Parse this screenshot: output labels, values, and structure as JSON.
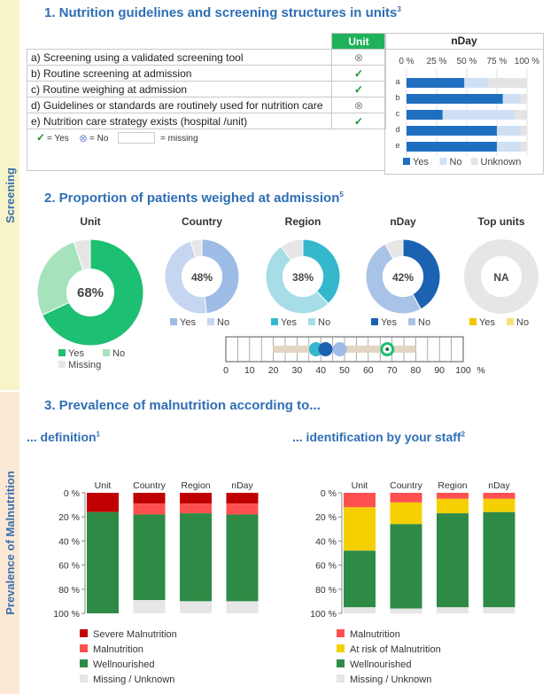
{
  "sidebar": {
    "screening_label": "Screening",
    "prevalence_label": "Prevalence of Malnutrition"
  },
  "section1": {
    "title": "1.  Nutrition guidelines and screening structures in units",
    "sup": "3",
    "unit_header": "Unit",
    "nday_header": "nDay",
    "rows": [
      {
        "label": "a) Screening using a validated screening tool",
        "mark": "no"
      },
      {
        "label": "b) Routine screening at admission",
        "mark": "yes"
      },
      {
        "label": "c) Routine weighing at admission",
        "mark": "yes"
      },
      {
        "label": "d) Guidelines or standards are routinely used for nutrition care",
        "mark": "no"
      },
      {
        "label": "e) Nutrition care strategy exists (hospital /unit)",
        "mark": "yes"
      }
    ],
    "symbols": {
      "yes": "✓",
      "no": "⊗"
    },
    "legend": {
      "yes": "= Yes",
      "no": "= No",
      "missing": "= missing"
    }
  },
  "section2": {
    "title": "2.  Proportion of patients weighed  at admission",
    "sup": "5",
    "range_ticks": [
      "0",
      "10",
      "20",
      "30",
      "40",
      "50",
      "60",
      "70",
      "80",
      "90",
      "100",
      "%"
    ]
  },
  "section3": {
    "title": "3.  Prevalence of malnutrition according to...",
    "left_title": "... definition",
    "left_sup": "1",
    "right_title": "... identification by your staff",
    "right_sup": "2"
  },
  "chart_data": [
    {
      "type": "bar",
      "orientation": "horizontal-stacked",
      "title": "nDay",
      "categories": [
        "a",
        "b",
        "c",
        "d",
        "e"
      ],
      "x_ticks": [
        "0 %",
        "25 %",
        "50 %",
        "75 %",
        "100 %"
      ],
      "xlim": [
        0,
        100
      ],
      "series": [
        {
          "name": "Yes",
          "color": "#1f6fc0",
          "values": [
            48,
            80,
            30,
            75,
            75
          ]
        },
        {
          "name": "No",
          "color": "#cfe0f5",
          "values": [
            20,
            15,
            60,
            20,
            20
          ]
        },
        {
          "name": "Unknown",
          "color": "#e4e4e4",
          "values": [
            32,
            5,
            10,
            5,
            5
          ]
        }
      ],
      "legend": "bottom"
    },
    {
      "type": "pie",
      "charts": [
        {
          "title": "Unit",
          "center": "68%",
          "slices": [
            {
              "name": "Yes",
              "value": 68,
              "color": "#1dbf73"
            },
            {
              "name": "No",
              "value": 27,
              "color": "#a6e3bd"
            },
            {
              "name": "Missing",
              "value": 5,
              "color": "#e6e6e6"
            }
          ],
          "legend": [
            "Yes",
            "No",
            "Missing"
          ]
        },
        {
          "title": "Country",
          "center": "48%",
          "slices": [
            {
              "name": "Yes",
              "value": 48,
              "color": "#9dbde6"
            },
            {
              "name": "No",
              "value": 47,
              "color": "#c6d6f0"
            },
            {
              "name": "Missing",
              "value": 5,
              "color": "#e6e6e6"
            }
          ],
          "legend": [
            "Yes",
            "No"
          ]
        },
        {
          "title": "Region",
          "center": "38%",
          "slices": [
            {
              "name": "Yes",
              "value": 38,
              "color": "#35b8cc"
            },
            {
              "name": "No",
              "value": 52,
              "color": "#a6dde6"
            },
            {
              "name": "Missing",
              "value": 10,
              "color": "#e6e6e6"
            }
          ],
          "legend": [
            "Yes",
            "No"
          ]
        },
        {
          "title": "nDay",
          "center": "42%",
          "slices": [
            {
              "name": "Yes",
              "value": 42,
              "color": "#1b62b3"
            },
            {
              "name": "No",
              "value": 50,
              "color": "#a9c3e6"
            },
            {
              "name": "Missing",
              "value": 8,
              "color": "#e6e6e6"
            }
          ],
          "legend": [
            "Yes",
            "No"
          ]
        },
        {
          "title": "Top units",
          "center": "NA",
          "slices": [
            {
              "name": "Missing",
              "value": 100,
              "color": "#e6e6e6"
            }
          ],
          "legend": [
            "Yes",
            "No"
          ],
          "legend_colors": [
            "#f5c400",
            "#f7e27a"
          ]
        }
      ]
    },
    {
      "type": "scatter",
      "title": "",
      "xlim": [
        0,
        100
      ],
      "range": [
        20,
        80
      ],
      "points": [
        {
          "name": "Region",
          "x": 38,
          "color": "#35b8cc"
        },
        {
          "name": "nDay",
          "x": 42,
          "color": "#1b62b3"
        },
        {
          "name": "Country",
          "x": 48,
          "color": "#9dbde6"
        },
        {
          "name": "Unit",
          "x": 68,
          "color": "#1dbf73"
        }
      ]
    },
    {
      "type": "bar",
      "orientation": "vertical-stacked",
      "title": "... definition",
      "categories": [
        "Unit",
        "Country",
        "Region",
        "nDay"
      ],
      "y_ticks": [
        "0 %",
        "20 %",
        "40 %",
        "60 %",
        "80 %",
        "100 %"
      ],
      "ylim": [
        0,
        100
      ],
      "series": [
        {
          "name": "Severe Malnutrition",
          "color": "#c00000",
          "values": [
            16,
            9,
            9,
            9
          ]
        },
        {
          "name": "Malnutrition",
          "color": "#ff5050",
          "values": [
            0,
            9,
            8,
            9
          ]
        },
        {
          "name": "Wellnourished",
          "color": "#2e8b45",
          "values": [
            84,
            71,
            73,
            72
          ]
        },
        {
          "name": "Missing / Unknown",
          "color": "#e6e6e6",
          "values": [
            0,
            11,
            10,
            10
          ]
        }
      ]
    },
    {
      "type": "bar",
      "orientation": "vertical-stacked",
      "title": "... identification by your staff",
      "categories": [
        "Unit",
        "Country",
        "Region",
        "nDay"
      ],
      "y_ticks": [
        "0 %",
        "20 %",
        "40 %",
        "60 %",
        "80 %",
        "100 %"
      ],
      "ylim": [
        0,
        100
      ],
      "series": [
        {
          "name": "Malnutrition",
          "color": "#ff5050",
          "values": [
            12,
            8,
            5,
            5
          ]
        },
        {
          "name": "At risk of Malnutrition",
          "color": "#f5d000",
          "values": [
            36,
            18,
            12,
            11
          ]
        },
        {
          "name": "Wellnourished",
          "color": "#2e8b45",
          "values": [
            47,
            70,
            78,
            79
          ]
        },
        {
          "name": "Missing / Unknown",
          "color": "#e6e6e6",
          "values": [
            5,
            4,
            5,
            5
          ]
        }
      ]
    }
  ]
}
